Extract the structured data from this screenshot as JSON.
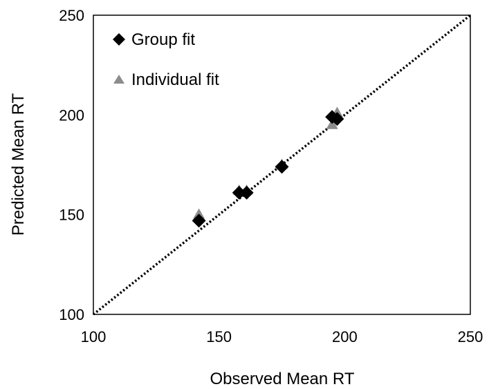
{
  "chart_data": {
    "type": "scatter",
    "xlabel": "Observed Mean RT",
    "ylabel": "Predicted Mean RT",
    "xlim": [
      100,
      250
    ],
    "ylim": [
      100,
      250
    ],
    "x_ticks": [
      "100",
      "150",
      "200",
      "250"
    ],
    "y_ticks": [
      "100",
      "150",
      "200",
      "250"
    ],
    "grid": false,
    "legend_position": "top-left",
    "reference_line": {
      "style": "dotted",
      "from": [
        100,
        100
      ],
      "to": [
        250,
        250
      ],
      "color": "#000000"
    },
    "series": [
      {
        "name": "Group fit",
        "marker": "diamond",
        "color": "#000000",
        "points": [
          [
            142,
            147
          ],
          [
            158,
            161
          ],
          [
            161,
            161
          ],
          [
            175,
            174
          ],
          [
            195,
            199
          ],
          [
            197,
            198
          ]
        ]
      },
      {
        "name": "Individual fit",
        "marker": "triangle",
        "color": "#8c8c8c",
        "points": [
          [
            142,
            150
          ],
          [
            158,
            162
          ],
          [
            161,
            162
          ],
          [
            175,
            175
          ],
          [
            195,
            195
          ],
          [
            197,
            201
          ]
        ]
      }
    ]
  }
}
